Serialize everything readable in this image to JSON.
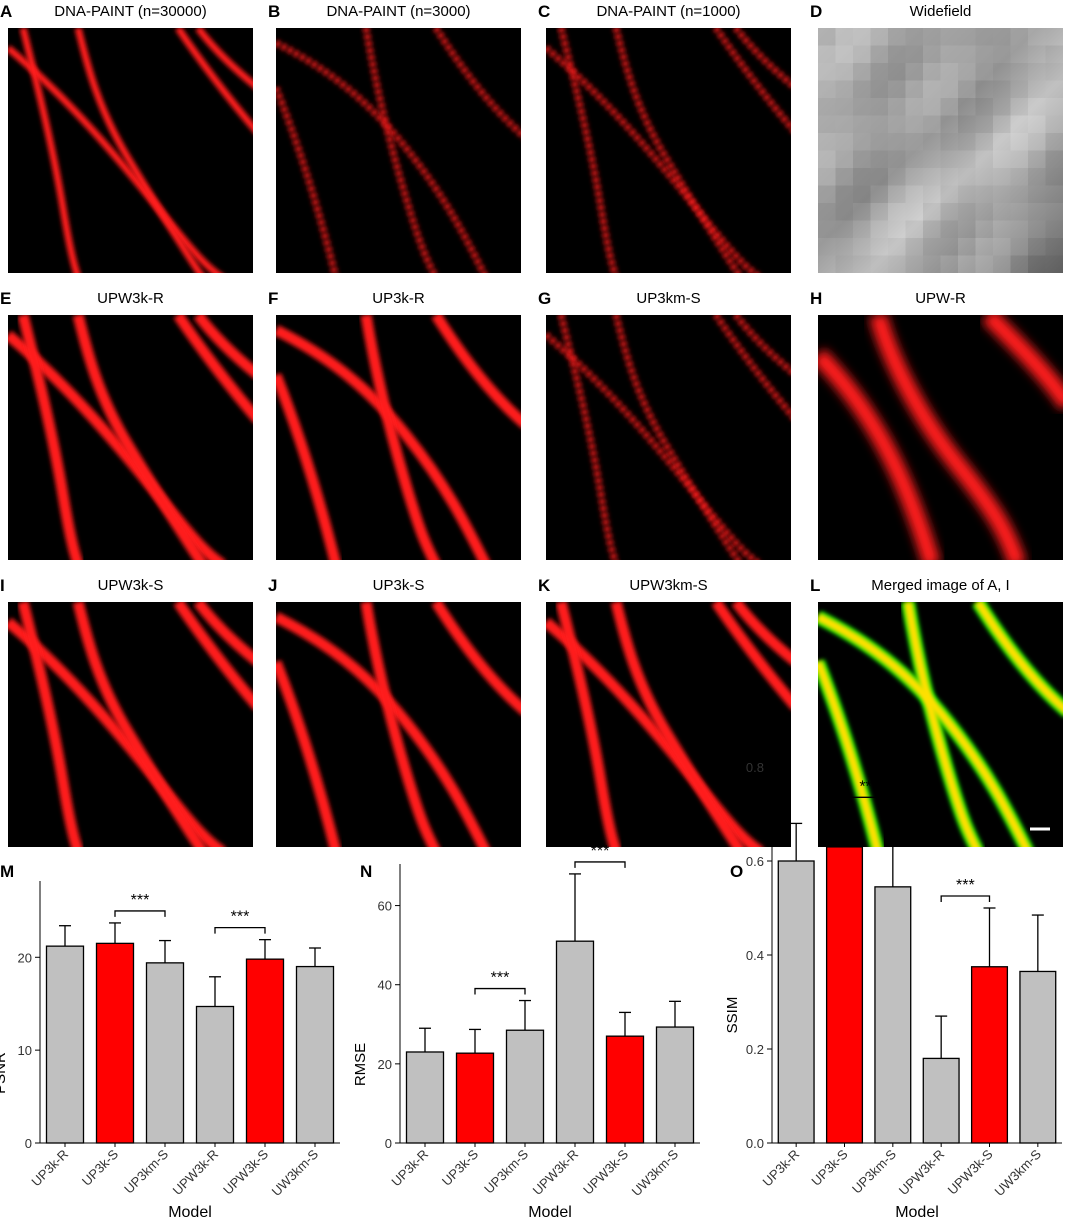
{
  "panels": [
    {
      "letter": "A",
      "title": "DNA-PAINT (n=30000)"
    },
    {
      "letter": "B",
      "title": "DNA-PAINT (n=3000)"
    },
    {
      "letter": "C",
      "title": "DNA-PAINT (n=1000)"
    },
    {
      "letter": "D",
      "title": "Widefield"
    },
    {
      "letter": "E",
      "title": "UPW3k-R"
    },
    {
      "letter": "F",
      "title": "UP3k-R"
    },
    {
      "letter": "G",
      "title": "UP3km-S"
    },
    {
      "letter": "H",
      "title": "UPW-R"
    },
    {
      "letter": "I",
      "title": "UPW3k-S"
    },
    {
      "letter": "J",
      "title": "UP3k-S"
    },
    {
      "letter": "K",
      "title": "UPW3km-S"
    },
    {
      "letter": "L",
      "title": "Merged image of A, I"
    }
  ],
  "chart_data": [
    {
      "type": "bar",
      "panel_label": "M",
      "x_label": "Model",
      "y_label": "PSNR",
      "categories": [
        "UP3k-R",
        "UP3k-S",
        "UP3km-S",
        "UPW3k-R",
        "UPW3k-S",
        "UW3km-S"
      ],
      "series": [
        {
          "values": [
            21.2,
            21.5,
            19.4,
            14.7,
            19.8,
            19.0
          ],
          "errors": [
            2.2,
            2.2,
            2.4,
            3.2,
            2.1,
            2.0
          ],
          "colors": [
            "#c0c0c0",
            "#ff0000",
            "#c0c0c0",
            "#c0c0c0",
            "#ff0000",
            "#c0c0c0"
          ]
        }
      ],
      "ylim": [
        0,
        28
      ],
      "yticks": [
        0,
        10,
        20
      ],
      "significance": [
        {
          "from": 1,
          "to": 2,
          "label": "***"
        },
        {
          "from": 3,
          "to": 4,
          "label": "***"
        }
      ]
    },
    {
      "type": "bar",
      "panel_label": "N",
      "x_label": "Model",
      "y_label": "RMSE",
      "categories": [
        "UP3k-R",
        "UP3k-S",
        "UP3km-S",
        "UPW3k-R",
        "UPW3k-S",
        "UW3km-S"
      ],
      "series": [
        {
          "values": [
            23,
            22.7,
            28.5,
            51,
            27,
            29.3
          ],
          "errors": [
            6,
            6,
            7.5,
            17,
            6,
            6.5
          ],
          "colors": [
            "#c0c0c0",
            "#ff0000",
            "#c0c0c0",
            "#c0c0c0",
            "#ff0000",
            "#c0c0c0"
          ]
        }
      ],
      "ylim": [
        0,
        70
      ],
      "yticks": [
        0,
        20,
        40,
        60
      ],
      "significance": [
        {
          "from": 1,
          "to": 2,
          "label": "***"
        },
        {
          "from": 3,
          "to": 4,
          "label": "***"
        }
      ]
    },
    {
      "type": "bar",
      "panel_label": "O",
      "x_label": "Model",
      "y_label": "SSIM",
      "categories": [
        "UP3k-R",
        "UP3k-S",
        "UP3km-S",
        "UPW3k-R",
        "UPW3k-S",
        "UW3km-S"
      ],
      "series": [
        {
          "values": [
            0.6,
            0.63,
            0.545,
            0.18,
            0.375,
            0.365
          ],
          "errors": [
            0.08,
            0.08,
            0.11,
            0.09,
            0.125,
            0.12
          ],
          "colors": [
            "#c0c0c0",
            "#ff0000",
            "#c0c0c0",
            "#c0c0c0",
            "#ff0000",
            "#c0c0c0"
          ]
        }
      ],
      "ylim": [
        0,
        0.8
      ],
      "yticks": [
        {
          "value": 0,
          "label": "0.0"
        },
        0.2,
        0.4,
        0.6,
        0.8
      ],
      "significance": [
        {
          "from": 1,
          "to": 2,
          "label": "***"
        },
        {
          "from": 3,
          "to": 4,
          "label": "***"
        }
      ]
    }
  ]
}
